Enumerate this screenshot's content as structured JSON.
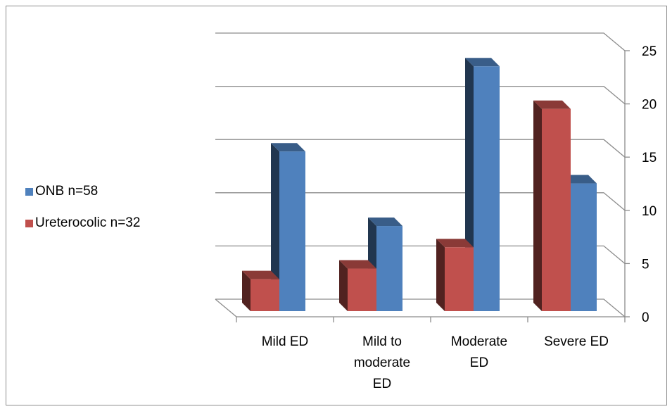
{
  "chart_data": {
    "type": "bar",
    "title": "",
    "xlabel": "",
    "ylabel": "",
    "categories": [
      [
        "Mild ED"
      ],
      [
        "Mild to",
        "moderate",
        "ED"
      ],
      [
        "Moderate",
        "ED"
      ],
      [
        "Severe ED"
      ]
    ],
    "series": [
      {
        "name": "ONB n=58",
        "color": "#4F81BD",
        "values": [
          15,
          8,
          23,
          12
        ]
      },
      {
        "name": "Ureterocolic n=32",
        "color": "#C0504D",
        "values": [
          3,
          4,
          6,
          19
        ]
      }
    ],
    "ylim": [
      0,
      25
    ],
    "yticks": [
      0,
      5,
      10,
      15,
      20,
      25
    ],
    "grid": true,
    "legend_position": "left",
    "three_d": true
  }
}
